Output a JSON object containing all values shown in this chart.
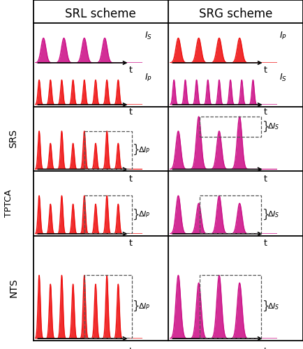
{
  "col_headers": [
    "SRL scheme",
    "SRG scheme"
  ],
  "row_labels": [
    "SRS",
    "TPTCA",
    "NTS"
  ],
  "magenta": "#CC1188",
  "red": "#EE1111",
  "header_fontsize": 12,
  "row_label_fontsize": 10,
  "signal_label_fontsize": 9,
  "t_fontsize": 9,
  "delta_fontsize": 8
}
